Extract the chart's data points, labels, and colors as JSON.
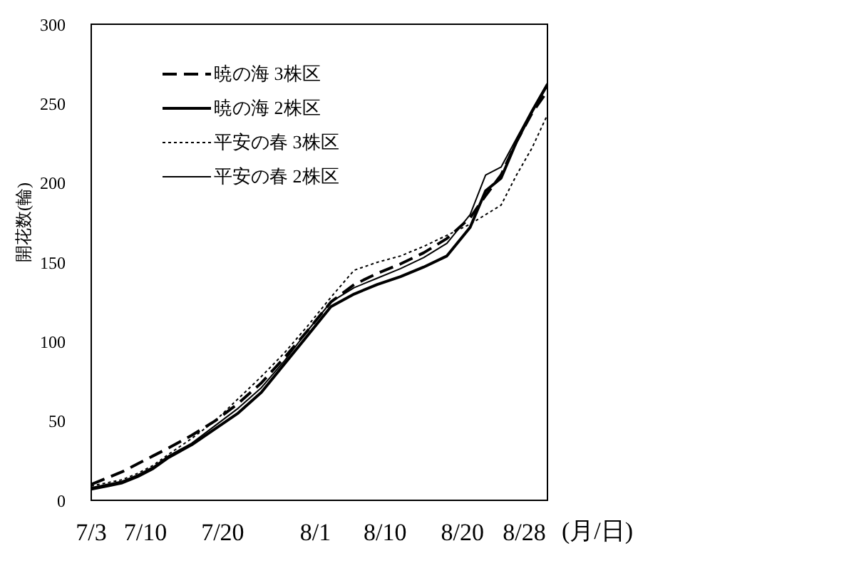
{
  "chart_data": {
    "type": "line",
    "xlabel": "(月/日)",
    "ylabel": "開花数(輪)",
    "x": [
      "--07-03",
      "--07-05",
      "--07-07",
      "--07-09",
      "--07-11",
      "--07-13",
      "--07-16",
      "--07-19",
      "--07-22",
      "--07-25",
      "--07-28",
      "--07-31",
      "--08-03",
      "--08-06",
      "--08-09",
      "--08-12",
      "--08-15",
      "--08-18",
      "--08-21",
      "--08-23",
      "--08-25",
      "--08-27",
      "--08-29",
      "--08-31"
    ],
    "series": [
      {
        "name": "暁の海 3株区",
        "color": "#000000",
        "line_style": "dashed",
        "values": [
          10,
          14,
          18,
          23,
          28,
          33,
          41,
          50,
          61,
          74,
          90,
          107,
          125,
          136,
          143,
          149,
          156,
          165,
          178,
          192,
          205,
          226,
          244,
          258
        ]
      },
      {
        "name": "暁の海 2株区",
        "color": "#000000",
        "line_style": "solid",
        "values": [
          7,
          9,
          11,
          15,
          20,
          27,
          35,
          45,
          55,
          68,
          86,
          104,
          122,
          130,
          136,
          141,
          147,
          154,
          172,
          195,
          203,
          226,
          245,
          262
        ]
      },
      {
        "name": "平安の春 3株区",
        "color": "#000000",
        "line_style": "dotted",
        "values": [
          9,
          11,
          13,
          17,
          22,
          29,
          39,
          50,
          64,
          78,
          93,
          110,
          128,
          145,
          150,
          154,
          160,
          167,
          174,
          180,
          186,
          205,
          222,
          243
        ]
      },
      {
        "name": "平安の春 2株区",
        "color": "#000000",
        "line_style": "solid",
        "values": [
          8,
          10,
          12,
          16,
          21,
          28,
          36,
          47,
          58,
          71,
          88,
          107,
          125,
          134,
          140,
          146,
          153,
          162,
          180,
          205,
          210,
          228,
          246,
          263
        ]
      }
    ],
    "xlim": [
      "--07-03",
      "--08-31"
    ],
    "xticks": [
      {
        "value": "--07-03",
        "label": "7/3"
      },
      {
        "value": "--07-10",
        "label": "7/10"
      },
      {
        "value": "--07-20",
        "label": "7/20"
      },
      {
        "value": "--08-01",
        "label": "8/1"
      },
      {
        "value": "--08-10",
        "label": "8/10"
      },
      {
        "value": "--08-20",
        "label": "8/20"
      },
      {
        "value": "--08-28",
        "label": "8/28"
      }
    ],
    "ylim": [
      0,
      300
    ],
    "yticks": [
      0,
      50,
      100,
      150,
      200,
      250,
      300
    ],
    "legend": "top left",
    "grid": false,
    "marker": "none"
  }
}
